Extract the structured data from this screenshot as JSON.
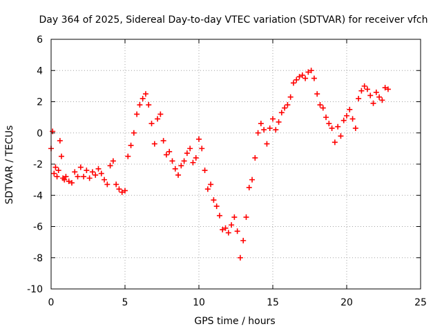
{
  "chart_data": {
    "type": "scatter",
    "title": "Day 364 of 2025, Sidereal Day-to-day VTEC variation (SDTVAR) for receiver vfch",
    "xlabel": "GPS time / hours",
    "ylabel": "SDTVAR / TECUs",
    "xlim": [
      0,
      25
    ],
    "ylim": [
      -10,
      6
    ],
    "x_ticks": [
      0,
      5,
      10,
      15,
      20,
      25
    ],
    "y_ticks": [
      -10,
      -8,
      -6,
      -4,
      -2,
      0,
      2,
      4,
      6
    ],
    "x_tick_labels": [
      "0",
      "5",
      "10",
      "15",
      "20",
      "25"
    ],
    "y_tick_labels": [
      "-10",
      "-8",
      "-6",
      "-4",
      "-2",
      "0",
      "2",
      "4",
      "6"
    ],
    "grid": true,
    "marker": "+",
    "color": "#ff0000",
    "series": [
      {
        "name": "SDTVAR",
        "x": [
          0.0,
          0.1,
          0.2,
          0.3,
          0.4,
          0.5,
          0.6,
          0.7,
          0.8,
          0.9,
          1.0,
          1.2,
          1.4,
          1.6,
          1.8,
          2.0,
          2.2,
          2.4,
          2.6,
          2.8,
          3.0,
          3.2,
          3.4,
          3.6,
          3.8,
          4.0,
          4.2,
          4.4,
          4.6,
          4.8,
          5.0,
          5.2,
          5.4,
          5.6,
          5.8,
          6.0,
          6.2,
          6.4,
          6.6,
          6.8,
          7.0,
          7.2,
          7.4,
          7.6,
          7.8,
          8.0,
          8.2,
          8.4,
          8.6,
          8.8,
          9.0,
          9.2,
          9.4,
          9.6,
          9.8,
          10.0,
          10.2,
          10.4,
          10.6,
          10.8,
          11.0,
          11.2,
          11.4,
          11.6,
          11.8,
          12.0,
          12.2,
          12.4,
          12.6,
          12.8,
          13.0,
          13.2,
          13.4,
          13.6,
          13.8,
          14.0,
          14.2,
          14.4,
          14.6,
          14.8,
          15.0,
          15.2,
          15.4,
          15.6,
          15.8,
          16.0,
          16.2,
          16.4,
          16.6,
          16.8,
          17.0,
          17.2,
          17.4,
          17.6,
          17.8,
          18.0,
          18.2,
          18.4,
          18.6,
          18.8,
          19.0,
          19.2,
          19.4,
          19.6,
          19.8,
          20.0,
          20.2,
          20.4,
          20.6,
          20.8,
          21.0,
          21.2,
          21.4,
          21.6,
          21.8,
          22.0,
          22.2,
          22.4,
          22.6,
          22.8
        ],
        "y": [
          -1.0,
          0.1,
          -2.6,
          -2.2,
          -2.8,
          -2.4,
          -0.5,
          -1.5,
          -2.9,
          -3.0,
          -2.8,
          -3.1,
          -3.2,
          -2.5,
          -2.8,
          -2.2,
          -2.8,
          -2.4,
          -2.9,
          -2.5,
          -2.7,
          -2.3,
          -2.6,
          -3.0,
          -3.3,
          -2.1,
          -1.8,
          -3.3,
          -3.6,
          -3.8,
          -3.7,
          -1.5,
          -0.8,
          0.0,
          1.2,
          1.8,
          2.2,
          2.5,
          1.8,
          0.6,
          -0.7,
          0.9,
          1.2,
          -0.5,
          -1.4,
          -1.2,
          -1.8,
          -2.3,
          -2.7,
          -2.1,
          -1.8,
          -1.3,
          -1.0,
          -1.9,
          -1.6,
          -0.4,
          -1.0,
          -2.4,
          -3.6,
          -3.3,
          -4.3,
          -4.7,
          -5.3,
          -6.2,
          -6.1,
          -6.4,
          -5.9,
          -5.4,
          -6.3,
          -8.0,
          -6.9,
          -5.4,
          -3.5,
          -3.0,
          -1.6,
          0.0,
          0.6,
          0.2,
          -0.7,
          0.3,
          0.9,
          0.2,
          0.7,
          1.3,
          1.6,
          1.8,
          2.3,
          3.2,
          3.4,
          3.6,
          3.7,
          3.5,
          3.9,
          4.0,
          3.5,
          2.5,
          1.8,
          1.6,
          1.0,
          0.6,
          0.3,
          -0.6,
          0.4,
          -0.2,
          0.8,
          1.1,
          1.5,
          0.9,
          0.3,
          2.2,
          2.7,
          3.0,
          2.8,
          2.4,
          1.9,
          2.6,
          2.3,
          2.1,
          2.9,
          2.8
        ]
      }
    ]
  }
}
